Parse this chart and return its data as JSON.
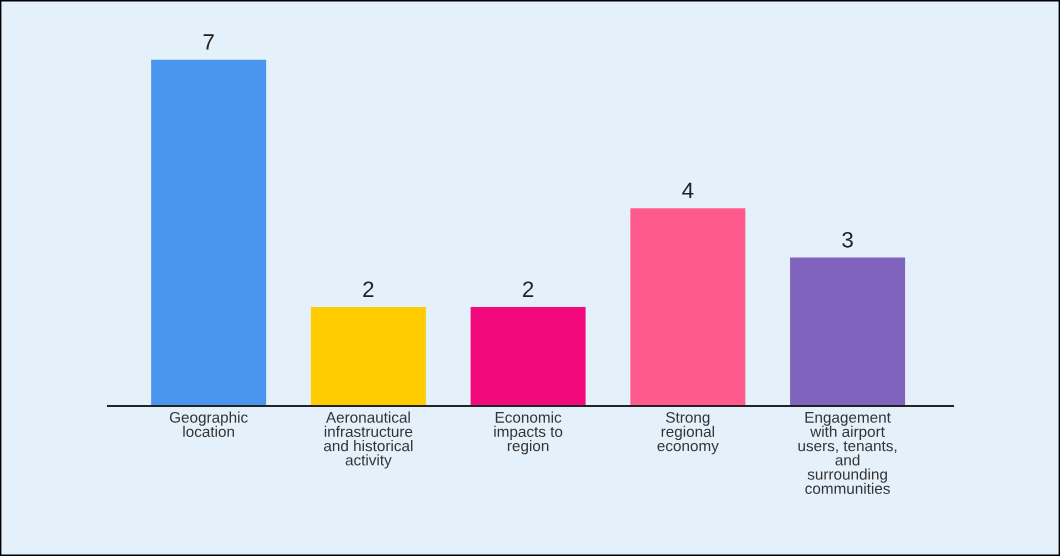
{
  "chart_data": {
    "type": "bar",
    "categories": [
      "Geographic\nlocation",
      "Aeronautical\ninfrastructure\nand historical\nactivity",
      "Economic\nimpacts to\nregion",
      "Strong\nregional\neconomy",
      "Engagement\nwith airport\nusers, tenants,\nand\nsurrounding\ncommunities"
    ],
    "values": [
      7,
      2,
      2,
      4,
      3
    ],
    "colors": [
      "#4a96ee",
      "#ffcc00",
      "#f20a7c",
      "#ff5a8c",
      "#7f63bd"
    ],
    "data_labels": true,
    "grid": false,
    "legend": false
  }
}
